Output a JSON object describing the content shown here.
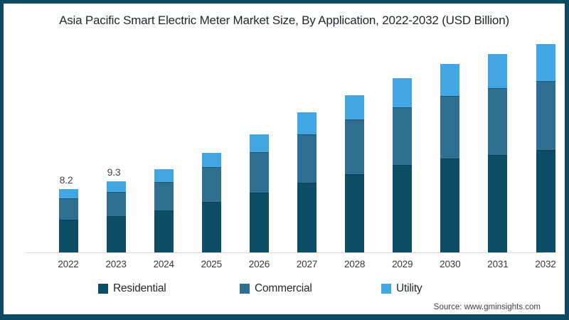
{
  "title": "Asia Pacific Smart Electric Meter Market Size, By Application, 2022-2032 (USD Billion)",
  "source": "Source: www.gminsights.com",
  "frame": {
    "border_color": "#0d4a61",
    "background": "#ffffff",
    "axis_line_color": "#dcdcdc"
  },
  "legend": [
    {
      "label": "Residential",
      "color": "#0d4d66"
    },
    {
      "label": "Commercial",
      "color": "#2f6f92"
    },
    {
      "label": "Utility",
      "color": "#41a6e1"
    }
  ],
  "chart_data": {
    "type": "bar",
    "stacked": true,
    "title": "Asia Pacific Smart Electric Meter Market Size, By Application, 2022-2032 (USD Billion)",
    "categories": [
      "2022",
      "2023",
      "2024",
      "2025",
      "2026",
      "2027",
      "2028",
      "2029",
      "2030",
      "2031",
      "2032"
    ],
    "series": [
      {
        "name": "Residential",
        "color": "#0d4d66",
        "values": [
          4.3,
          4.7,
          5.5,
          6.6,
          7.8,
          9.1,
          10.2,
          11.4,
          12.2,
          12.7,
          13.3
        ]
      },
      {
        "name": "Commercial",
        "color": "#2f6f92",
        "values": [
          2.7,
          3.2,
          3.7,
          4.5,
          5.3,
          6.3,
          7.1,
          7.5,
          8.2,
          8.7,
          9.0
        ]
      },
      {
        "name": "Utility",
        "color": "#41a6e1",
        "values": [
          1.2,
          1.4,
          1.6,
          1.9,
          2.3,
          2.8,
          3.2,
          3.8,
          4.1,
          4.4,
          4.8
        ]
      }
    ],
    "total_labels": [
      "8.2",
      "9.3",
      "",
      "",
      "",
      "",
      "",
      "",
      "",
      "",
      ""
    ],
    "xlabel": "",
    "ylabel": "",
    "ylim": [
      0,
      28
    ],
    "grid": false,
    "y_axis_visible": false,
    "legend_position": "bottom"
  }
}
